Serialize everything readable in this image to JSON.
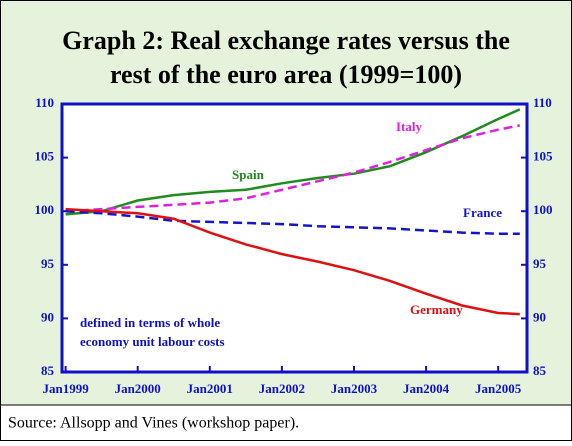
{
  "chart_data": {
    "type": "line",
    "title": [
      "Graph 2: Real exchange rates versus the",
      "rest of the euro area (1999=100)"
    ],
    "x": [
      1999,
      1999.5,
      2000,
      2000.5,
      2001,
      2001.5,
      2002,
      2002.5,
      2003,
      2003.5,
      2004,
      2004.5,
      2005,
      2005.3
    ],
    "series": [
      {
        "name": "Spain",
        "color": "#1e8c1e",
        "dashed": false,
        "values": [
          99.7,
          100,
          101,
          101.5,
          101.8,
          102,
          102.6,
          103.1,
          103.5,
          104.2,
          105.5,
          107,
          108.6,
          109.5
        ]
      },
      {
        "name": "Italy",
        "color": "#e020e0",
        "dashed": true,
        "values": [
          100,
          100.2,
          100.4,
          100.6,
          100.8,
          101.2,
          102,
          102.8,
          103.6,
          104.6,
          105.7,
          106.8,
          107.6,
          108
        ]
      },
      {
        "name": "France",
        "color": "#1414d0",
        "dashed": true,
        "values": [
          100,
          99.8,
          99.5,
          99.1,
          99,
          98.9,
          98.8,
          98.6,
          98.5,
          98.4,
          98.2,
          98,
          97.9,
          97.9
        ]
      },
      {
        "name": "Germany",
        "color": "#e01010",
        "dashed": false,
        "values": [
          100.2,
          100,
          99.8,
          99.3,
          98,
          96.9,
          96,
          95.3,
          94.5,
          93.5,
          92.3,
          91.2,
          90.5,
          90.4
        ]
      }
    ],
    "xlim": [
      1998.95,
      2005.4
    ],
    "xticks": [
      {
        "value": 1999,
        "label": "Jan1999"
      },
      {
        "value": 2000,
        "label": "Jan2000"
      },
      {
        "value": 2001,
        "label": "Jan2001"
      },
      {
        "value": 2002,
        "label": "Jan2002"
      },
      {
        "value": 2003,
        "label": "Jan2003"
      },
      {
        "value": 2004,
        "label": "Jan2004"
      },
      {
        "value": 2005,
        "label": "Jan2005"
      }
    ],
    "ylim": [
      85,
      110
    ],
    "yticks": [
      85,
      90,
      95,
      100,
      105,
      110
    ],
    "y2lim": [
      85,
      110
    ],
    "y2ticks": [
      85,
      90,
      95,
      100,
      105,
      110
    ],
    "annotations": [
      "defined in terms of whole",
      "economy unit labour costs"
    ],
    "source": "Source: Allsopp and Vines (workshop paper)."
  }
}
